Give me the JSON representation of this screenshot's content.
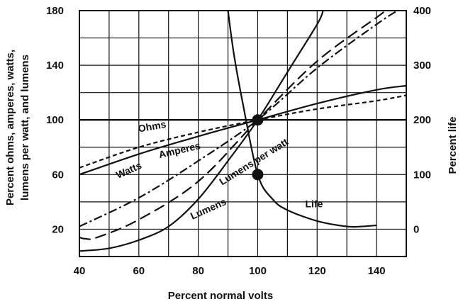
{
  "chart_data": {
    "type": "line",
    "title": "",
    "xlabel": "Percent normal volts",
    "ylabel_left": [
      "Percent ohms, amperes, watts,",
      "lumens per watt, and lumens"
    ],
    "ylabel_right": "Percent life",
    "xlim": [
      40,
      150
    ],
    "ylim_left": [
      0,
      180
    ],
    "ylim_right": [
      -50,
      400
    ],
    "x_ticks": [
      40,
      60,
      80,
      100,
      120,
      140
    ],
    "y_ticks_left": [
      20,
      60,
      100,
      140,
      180
    ],
    "y_ticks_right": [
      0,
      100,
      200,
      300,
      400
    ],
    "grid": true,
    "series": [
      {
        "name": "Ohms",
        "axis": "left",
        "dash": "6,4",
        "points": [
          [
            40,
            65
          ],
          [
            60,
            80
          ],
          [
            80,
            91
          ],
          [
            100,
            100
          ],
          [
            120,
            108
          ],
          [
            140,
            114
          ],
          [
            150,
            118
          ]
        ]
      },
      {
        "name": "Amperes",
        "axis": "left",
        "dash": "",
        "points": [
          [
            40,
            60
          ],
          [
            60,
            75
          ],
          [
            80,
            88
          ],
          [
            100,
            100
          ],
          [
            120,
            112
          ],
          [
            140,
            122
          ],
          [
            150,
            125
          ]
        ]
      },
      {
        "name": "Watts",
        "axis": "left",
        "dash": "12,4,3,4",
        "points": [
          [
            40,
            22
          ],
          [
            60,
            43
          ],
          [
            80,
            70
          ],
          [
            100,
            100
          ],
          [
            120,
            138
          ],
          [
            140,
            170
          ],
          [
            147,
            180
          ]
        ]
      },
      {
        "name": "Lumens per watt",
        "axis": "left",
        "dash": "16,7",
        "points": [
          [
            40,
            14
          ],
          [
            42,
            13
          ],
          [
            46,
            14
          ],
          [
            60,
            27
          ],
          [
            80,
            55
          ],
          [
            100,
            100
          ],
          [
            120,
            143
          ],
          [
            140,
            175
          ],
          [
            143,
            180
          ]
        ]
      },
      {
        "name": "Lumens",
        "axis": "left",
        "dash": "",
        "points": [
          [
            40,
            4
          ],
          [
            50,
            6
          ],
          [
            60,
            12
          ],
          [
            70,
            22
          ],
          [
            80,
            42
          ],
          [
            90,
            70
          ],
          [
            100,
            100
          ],
          [
            110,
            135
          ],
          [
            120,
            170
          ],
          [
            122,
            180
          ]
        ]
      },
      {
        "name": "Life",
        "axis": "right",
        "dash": "",
        "points": [
          [
            90,
            400
          ],
          [
            92,
            320
          ],
          [
            95,
            230
          ],
          [
            100,
            100
          ],
          [
            105,
            55
          ],
          [
            110,
            35
          ],
          [
            120,
            15
          ],
          [
            130,
            5
          ],
          [
            135,
            5
          ],
          [
            140,
            7
          ]
        ]
      }
    ],
    "markers": [
      [
        100,
        100
      ],
      [
        100,
        60
      ]
    ],
    "labels": [
      {
        "text": "Ohms",
        "x": 60,
        "y": 91,
        "rotate": -10
      },
      {
        "text": "Amperes",
        "x": 67,
        "y": 72,
        "rotate": -13
      },
      {
        "text": "Watts",
        "x": 53,
        "y": 57,
        "rotate": -24
      },
      {
        "text": "Lumens per watt",
        "x": 88,
        "y": 52,
        "rotate": -32
      },
      {
        "text": "Lumens",
        "x": 78,
        "y": 27,
        "rotate": -24
      },
      {
        "text": "Life",
        "x": 116,
        "y": 36,
        "rotate": 0
      }
    ]
  }
}
